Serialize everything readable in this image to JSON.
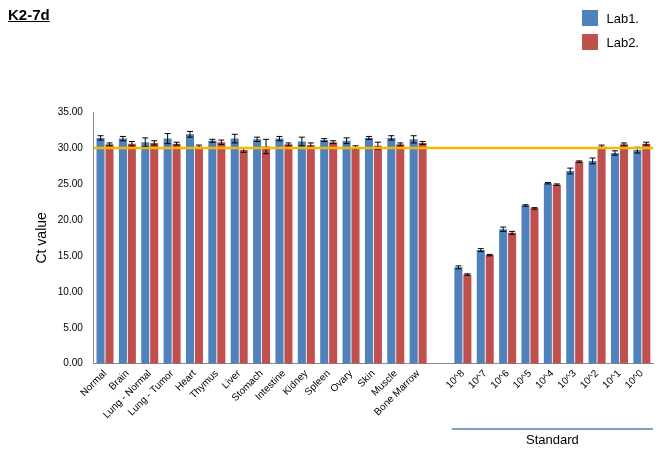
{
  "chart_data": {
    "type": "bar",
    "title": "K2-7d",
    "y_label": "Ct value",
    "categories": [
      "Normal",
      "Brain",
      "Lung - Normal",
      "Lung - Tumor",
      "Heart",
      "Thymus",
      "Liver",
      "Stomach",
      "Intestine",
      "Kidney",
      "Spleen",
      "Ovary",
      "Skin",
      "Muscle",
      "Bone Marrow",
      null,
      "10^8",
      "10^7",
      "10^6",
      "10^5",
      "10^4",
      "10^3",
      "10^2",
      "10^1",
      "10^0"
    ],
    "series": [
      {
        "name": "Lab1.",
        "color": "#4f81bd",
        "values": [
          31.4,
          31.3,
          30.8,
          31.3,
          31.9,
          31.0,
          31.3,
          31.2,
          31.3,
          30.9,
          31.1,
          31.0,
          31.4,
          31.4,
          31.2,
          null,
          13.4,
          15.8,
          18.7,
          22.0,
          25.1,
          26.8,
          28.2,
          29.3,
          29.7
        ],
        "errors": [
          0.3,
          0.3,
          0.6,
          0.7,
          0.4,
          0.2,
          0.6,
          0.3,
          0.3,
          0.6,
          0.2,
          0.4,
          0.2,
          0.3,
          0.5,
          null,
          0.2,
          0.2,
          0.3,
          0.1,
          0.1,
          0.4,
          0.4,
          0.3,
          0.4
        ]
      },
      {
        "name": "Lab2.",
        "color": "#c0504d",
        "values": [
          30.5,
          30.6,
          30.7,
          30.6,
          30.2,
          30.8,
          29.7,
          30.2,
          30.5,
          30.4,
          30.8,
          30.1,
          30.3,
          30.5,
          30.7,
          null,
          12.4,
          15.1,
          18.2,
          21.6,
          24.9,
          28.1,
          30.2,
          30.5,
          30.6
        ],
        "errors": [
          0.2,
          0.3,
          0.3,
          0.2,
          0.2,
          0.3,
          0.3,
          1.0,
          0.2,
          0.3,
          0.2,
          0.2,
          0.5,
          0.2,
          0.2,
          null,
          0.1,
          0.1,
          0.2,
          0.1,
          0.1,
          0.1,
          0.2,
          0.2,
          0.2
        ]
      }
    ],
    "ylim": [
      0,
      35
    ],
    "yticks": [
      {
        "value": 0,
        "label": "0.00"
      },
      {
        "value": 5,
        "label": "5.00"
      },
      {
        "value": 10,
        "label": "10.00"
      },
      {
        "value": 15,
        "label": "15.00"
      },
      {
        "value": 20,
        "label": "20.00"
      },
      {
        "value": 25,
        "label": "25.00"
      },
      {
        "value": 30,
        "label": "30.00"
      },
      {
        "value": 35,
        "label": "35.00"
      }
    ],
    "grid": false,
    "legend": "top-right",
    "reference_lines": [
      {
        "value": 30,
        "color": "#f5b800"
      }
    ],
    "annotations": [
      {
        "text": "Standard",
        "from": "10^8",
        "to": "10^0",
        "color": "#4f81bd"
      }
    ]
  }
}
